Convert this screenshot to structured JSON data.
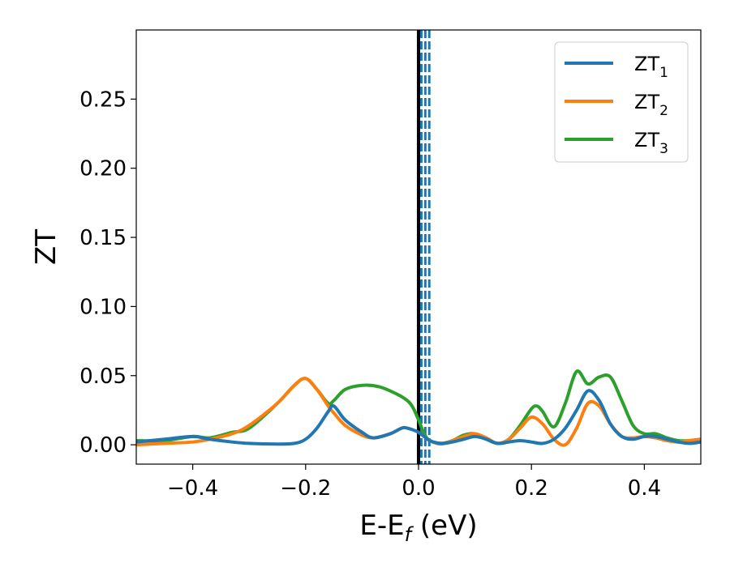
{
  "chart_data": {
    "type": "line",
    "xlabel": {
      "main": "E-E",
      "sub": "f",
      "rest": " (eV)"
    },
    "ylabel": "ZT",
    "xlim": [
      -0.5,
      0.5
    ],
    "ylim": [
      -0.014,
      0.3
    ],
    "xticks": [
      -0.4,
      -0.2,
      0.0,
      0.2,
      0.4
    ],
    "xtick_labels": [
      "−0.4",
      "−0.2",
      "0.0",
      "0.2",
      "0.4"
    ],
    "yticks": [
      0.0,
      0.05,
      0.1,
      0.15,
      0.2,
      0.25
    ],
    "ytick_labels": [
      "0.00",
      "0.05",
      "0.10",
      "0.15",
      "0.20",
      "0.25"
    ],
    "grid": false,
    "legend_position": "top-right",
    "vertical_lines": [
      {
        "x": 0.0,
        "style": "solid",
        "color": "#000000"
      },
      {
        "x": 0.005,
        "style": "dashed",
        "color": "#1f77b4"
      },
      {
        "x": 0.012,
        "style": "dashed",
        "color": "#1f77b4"
      },
      {
        "x": 0.019,
        "style": "dashed",
        "color": "#1f77b4"
      }
    ],
    "series": [
      {
        "name": {
          "base": "ZT",
          "sub": "1"
        },
        "color": "#1f77b4",
        "x": [
          -0.5,
          -0.45,
          -0.4,
          -0.37,
          -0.33,
          -0.3,
          -0.25,
          -0.22,
          -0.2,
          -0.18,
          -0.16,
          -0.15,
          -0.13,
          -0.1,
          -0.08,
          -0.05,
          -0.03,
          -0.02,
          0.0,
          0.02,
          0.04,
          0.06,
          0.08,
          0.1,
          0.12,
          0.14,
          0.16,
          0.18,
          0.2,
          0.22,
          0.24,
          0.26,
          0.28,
          0.3,
          0.32,
          0.34,
          0.36,
          0.38,
          0.4,
          0.42,
          0.44,
          0.46,
          0.48,
          0.5
        ],
        "y": [
          0.002,
          0.004,
          0.006,
          0.004,
          0.002,
          0.001,
          0.0005,
          0.001,
          0.004,
          0.012,
          0.024,
          0.028,
          0.018,
          0.009,
          0.005,
          0.008,
          0.012,
          0.012,
          0.009,
          0.003,
          0.001,
          0.002,
          0.004,
          0.006,
          0.004,
          0.001,
          0.002,
          0.003,
          0.002,
          0.001,
          0.004,
          0.012,
          0.025,
          0.039,
          0.032,
          0.015,
          0.006,
          0.004,
          0.006,
          0.006,
          0.004,
          0.002,
          0.001,
          0.002
        ]
      },
      {
        "name": {
          "base": "ZT",
          "sub": "2"
        },
        "color": "#ff7f0e",
        "x": [
          -0.5,
          -0.45,
          -0.4,
          -0.37,
          -0.33,
          -0.3,
          -0.25,
          -0.22,
          -0.2,
          -0.18,
          -0.16,
          -0.15,
          -0.13,
          -0.1,
          -0.08,
          -0.05,
          -0.03,
          -0.02,
          0.0,
          0.02,
          0.04,
          0.06,
          0.08,
          0.1,
          0.12,
          0.14,
          0.16,
          0.18,
          0.2,
          0.22,
          0.24,
          0.26,
          0.28,
          0.3,
          0.32,
          0.34,
          0.36,
          0.38,
          0.4,
          0.42,
          0.44,
          0.46,
          0.48,
          0.5
        ],
        "y": [
          0.0,
          0.001,
          0.002,
          0.004,
          0.008,
          0.014,
          0.03,
          0.043,
          0.048,
          0.04,
          0.028,
          0.023,
          0.014,
          0.007,
          0.005,
          0.008,
          0.012,
          0.012,
          0.009,
          0.003,
          0.0005,
          0.003,
          0.006,
          0.008,
          0.005,
          0.001,
          0.004,
          0.012,
          0.02,
          0.015,
          0.004,
          0.0,
          0.012,
          0.03,
          0.028,
          0.015,
          0.006,
          0.005,
          0.006,
          0.005,
          0.003,
          0.002,
          0.003,
          0.004
        ]
      },
      {
        "name": {
          "base": "ZT",
          "sub": "3"
        },
        "color": "#2ca02c",
        "x": [
          -0.5,
          -0.45,
          -0.4,
          -0.37,
          -0.33,
          -0.3,
          -0.25,
          -0.22,
          -0.2,
          -0.18,
          -0.16,
          -0.15,
          -0.13,
          -0.1,
          -0.07,
          -0.04,
          -0.02,
          -0.01,
          0.0,
          0.01,
          0.02,
          0.04,
          0.06,
          0.08,
          0.1,
          0.12,
          0.14,
          0.16,
          0.18,
          0.2,
          0.21,
          0.22,
          0.24,
          0.26,
          0.28,
          0.3,
          0.32,
          0.34,
          0.36,
          0.38,
          0.4,
          0.42,
          0.44,
          0.46,
          0.48,
          0.5
        ],
        "y": [
          0.003,
          0.003,
          0.006,
          0.005,
          0.009,
          0.012,
          0.03,
          0.043,
          0.048,
          0.04,
          0.03,
          0.032,
          0.04,
          0.043,
          0.042,
          0.037,
          0.032,
          0.027,
          0.018,
          0.008,
          0.003,
          0.001,
          0.003,
          0.007,
          0.008,
          0.004,
          0.001,
          0.004,
          0.014,
          0.026,
          0.028,
          0.024,
          0.013,
          0.03,
          0.053,
          0.044,
          0.049,
          0.049,
          0.032,
          0.014,
          0.008,
          0.008,
          0.005,
          0.003,
          0.003,
          0.004
        ]
      }
    ]
  }
}
